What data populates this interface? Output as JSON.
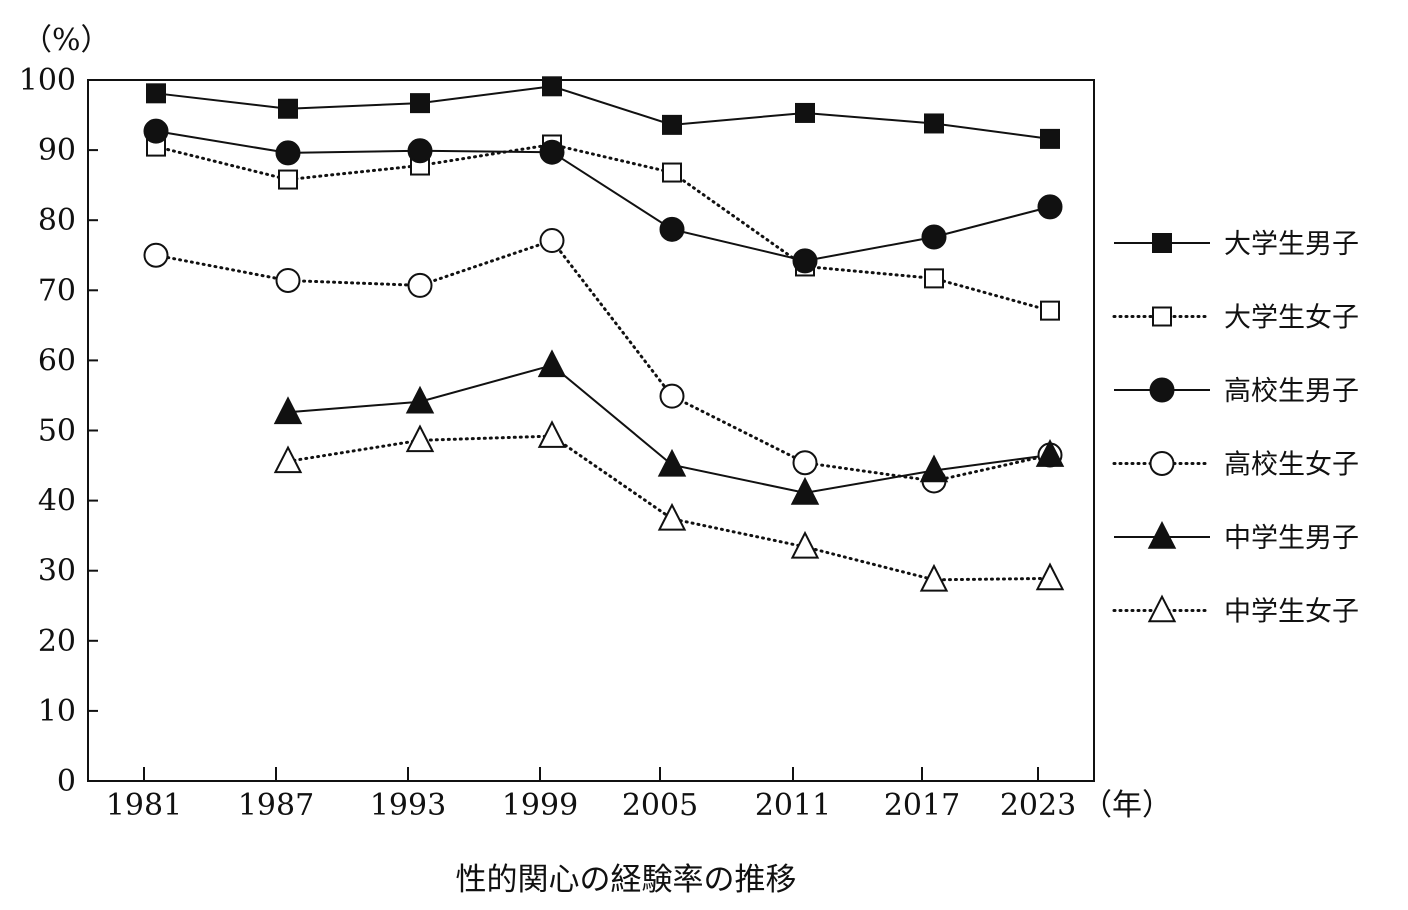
{
  "chart_data": {
    "type": "line",
    "title": "性的関心の経験率の推移",
    "ylabel": "（%）",
    "xlabel": "（年）",
    "ylim": [
      0,
      100
    ],
    "yticks": [
      0,
      10,
      20,
      30,
      40,
      50,
      60,
      70,
      80,
      90,
      100
    ],
    "x": [
      "1981",
      "1987",
      "1993",
      "1999",
      "2005",
      "2011",
      "2017",
      "2023"
    ],
    "grid": false,
    "legend_position": "right",
    "series": [
      {
        "name": "大学生男子",
        "marker": "square",
        "filled": true,
        "line": "solid",
        "values": [
          98.1,
          95.9,
          96.7,
          99.1,
          93.6,
          95.3,
          93.8,
          91.6
        ]
      },
      {
        "name": "大学生女子",
        "marker": "square",
        "filled": false,
        "line": "dotted",
        "values": [
          90.5,
          85.8,
          87.8,
          90.8,
          86.8,
          73.4,
          71.7,
          67.1
        ]
      },
      {
        "name": "高校生男子",
        "marker": "circle",
        "filled": true,
        "line": "solid",
        "values": [
          92.7,
          89.6,
          89.9,
          89.7,
          78.7,
          74.2,
          77.6,
          81.9
        ]
      },
      {
        "name": "高校生女子",
        "marker": "circle",
        "filled": false,
        "line": "dotted",
        "values": [
          75.0,
          71.4,
          70.7,
          77.1,
          54.9,
          45.4,
          42.8,
          46.5
        ]
      },
      {
        "name": "中学生男子",
        "marker": "triangle",
        "filled": true,
        "line": "solid",
        "values": [
          null,
          52.6,
          54.1,
          59.3,
          45.1,
          41.1,
          44.3,
          46.5
        ]
      },
      {
        "name": "中学生女子",
        "marker": "triangle",
        "filled": false,
        "line": "dotted",
        "values": [
          null,
          45.6,
          48.6,
          49.2,
          37.4,
          33.4,
          28.7,
          28.9
        ]
      }
    ]
  }
}
